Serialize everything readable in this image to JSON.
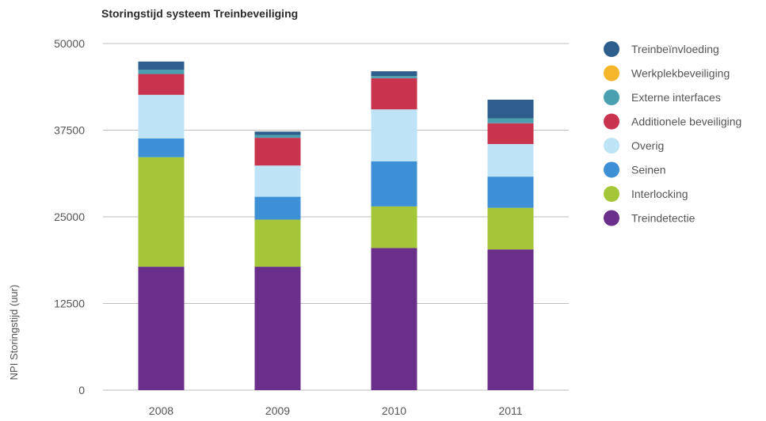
{
  "chart_data": {
    "type": "bar",
    "stacked": true,
    "title": "Storingstijd systeem Treinbeveiliging",
    "xlabel": "",
    "ylabel": "NPI Storingstijd (uur)",
    "ylim": [
      0,
      50000
    ],
    "yticks": [
      0,
      12500,
      25000,
      37500,
      50000
    ],
    "grid": true,
    "legend_position": "right",
    "categories": [
      "2008",
      "2009",
      "2010",
      "2011"
    ],
    "series": [
      {
        "name": "Treindetectie",
        "color": "#6a2f8a",
        "values": [
          17800,
          17800,
          20500,
          20300
        ]
      },
      {
        "name": "Interlocking",
        "color": "#a6c63a",
        "values": [
          15800,
          6800,
          6000,
          6000
        ]
      },
      {
        "name": "Seinen",
        "color": "#3d8fd6",
        "values": [
          2700,
          3300,
          6500,
          4500
        ]
      },
      {
        "name": "Overig",
        "color": "#bfe3f6",
        "values": [
          6300,
          4500,
          7500,
          4700
        ]
      },
      {
        "name": "Additionele beveiliging",
        "color": "#c8344e",
        "values": [
          3000,
          4000,
          4500,
          3000
        ]
      },
      {
        "name": "Externe interfaces",
        "color": "#4aa0b0",
        "values": [
          600,
          400,
          300,
          700
        ]
      },
      {
        "name": "Werkplekbeveiliging",
        "color": "#f6b62c",
        "values": [
          0,
          0,
          0,
          0
        ]
      },
      {
        "name": "Treinbeïnvloeding",
        "color": "#2e5f8c",
        "values": [
          1200,
          500,
          700,
          2700
        ]
      }
    ],
    "legend_order": [
      "Treinbeïnvloeding",
      "Werkplekbeveiliging",
      "Externe interfaces",
      "Additionele beveiliging",
      "Overig",
      "Seinen",
      "Interlocking",
      "Treindetectie"
    ]
  }
}
